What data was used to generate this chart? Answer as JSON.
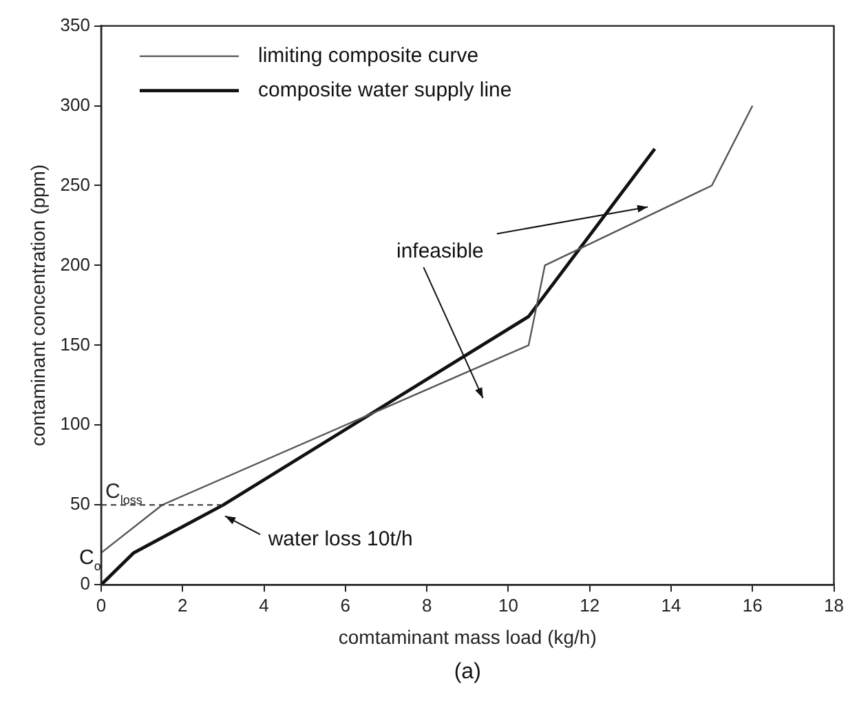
{
  "chart_data": {
    "type": "line",
    "xlabel": "comtaminant mass load (kg/h)",
    "ylabel": "contaminant concentration (ppm)",
    "series": [
      {
        "name": "limiting composite curve",
        "color": "#555555",
        "x": [
          0,
          1.5,
          10.5,
          10.9,
          15,
          16
        ],
        "values": [
          20,
          50,
          150,
          200,
          250,
          300
        ]
      },
      {
        "name": "composite water supply line",
        "color": "#111111",
        "x": [
          0,
          0.8,
          3,
          10.5,
          13.6
        ],
        "values": [
          0,
          20,
          50,
          168,
          273
        ]
      }
    ],
    "xlim": [
      0,
      18
    ],
    "xticks": [
      0,
      2,
      4,
      6,
      8,
      10,
      12,
      14,
      16,
      18
    ],
    "ylim": [
      0,
      350
    ],
    "yticks": [
      0,
      50,
      100,
      150,
      200,
      250,
      300,
      350
    ],
    "ref_lines": [
      {
        "axis": "y",
        "value": 50,
        "label": "C$_{loss}$",
        "line_style": "dashed",
        "color": "#333333"
      }
    ],
    "annotations": [
      "infeasible",
      "water loss 10t/h",
      {
        "text": "C$_{o}$",
        "x": 0,
        "y": 20
      },
      "(a)"
    ],
    "legend": "top left",
    "grid": false,
    "marker": "none",
    "line_style": "solid"
  }
}
